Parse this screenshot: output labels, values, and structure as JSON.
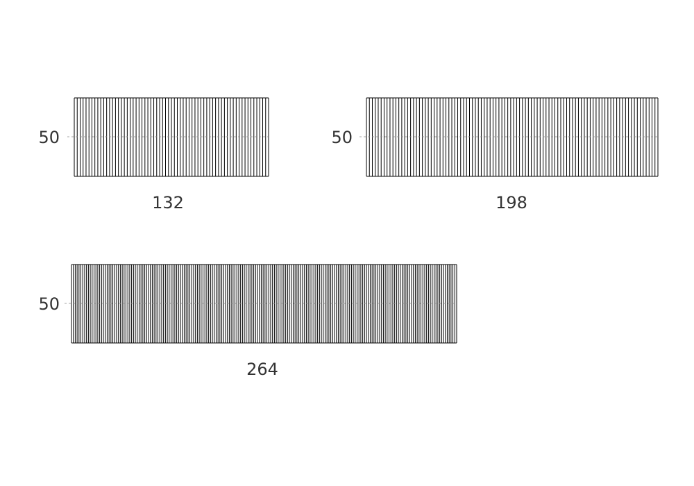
{
  "chart_data": [
    {
      "type": "heatmap",
      "pattern": "vertical-lines",
      "ytick_label": "50",
      "xlabel": "132",
      "grid": false,
      "color": "#000000",
      "refline_color": "#888888"
    },
    {
      "type": "heatmap",
      "pattern": "vertical-lines",
      "ytick_label": "50",
      "xlabel": "198",
      "grid": false,
      "color": "#000000",
      "refline_color": "#888888"
    },
    {
      "type": "heatmap",
      "pattern": "vertical-lines",
      "ytick_label": "50",
      "xlabel": "264",
      "grid": false,
      "color": "#000000",
      "refline_color": "#888888"
    }
  ]
}
